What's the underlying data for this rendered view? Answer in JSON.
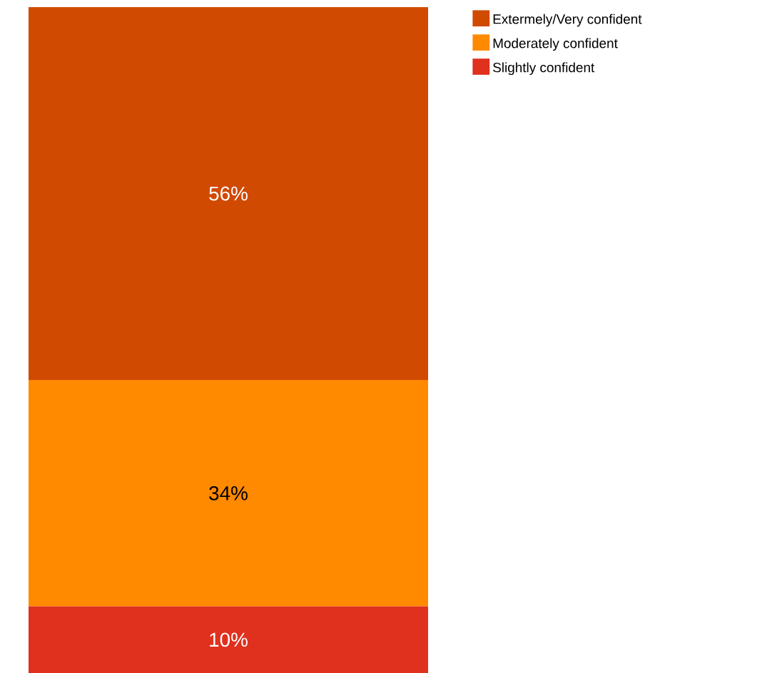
{
  "chart_data": {
    "type": "bar",
    "stacked": true,
    "categories": [
      null
    ],
    "tick_labels": false,
    "legend": "top right",
    "series": [
      {
        "name": "Slightly confident",
        "color": "#e0301e",
        "values": [
          10
        ],
        "value_labels": [
          "10%"
        ]
      },
      {
        "name": "Moderately confident",
        "color": "#ff8a00",
        "values": [
          34
        ],
        "value_labels": [
          "34%"
        ]
      },
      {
        "name": "Extermely/Very confident",
        "color": "#d04a02",
        "values": [
          56
        ],
        "value_labels": [
          "56%"
        ]
      }
    ]
  }
}
